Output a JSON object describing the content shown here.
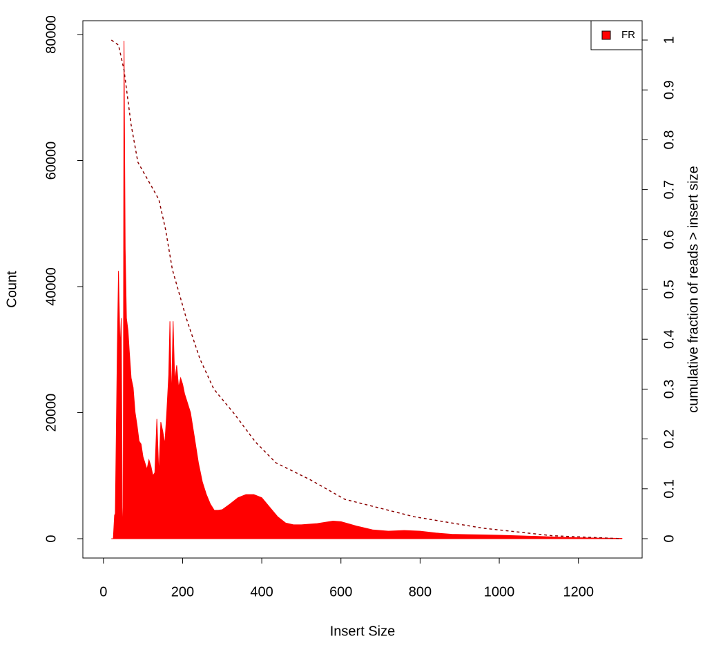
{
  "chart_data": {
    "type": "area",
    "x_label": "Insert Size",
    "y_label": "Count",
    "y2_label": "cumulative fraction of reads > insert size",
    "xlim": [
      -52,
      1361
    ],
    "ylim": [
      -3068,
      82192
    ],
    "y2lim": [
      -0.0388,
      1.0388
    ],
    "xticks": [
      0,
      200,
      400,
      600,
      800,
      1000,
      1200
    ],
    "yticks": [
      0,
      20000,
      40000,
      60000,
      80000
    ],
    "y2ticks": [
      0,
      0.1,
      0.2,
      0.3,
      0.4,
      0.5,
      0.6,
      0.7,
      0.8,
      0.9,
      1
    ],
    "legend": "topright",
    "series": [
      {
        "name": "FR",
        "color": "#ff0000",
        "x": [
          20,
          25,
          28,
          30,
          35,
          38,
          42,
          45,
          48,
          50,
          52,
          55,
          58,
          62,
          65,
          70,
          75,
          80,
          85,
          90,
          95,
          100,
          105,
          110,
          115,
          120,
          125,
          130,
          135,
          140,
          145,
          150,
          155,
          160,
          165,
          168,
          172,
          176,
          180,
          185,
          190,
          195,
          200,
          205,
          210,
          220,
          230,
          240,
          250,
          260,
          270,
          280,
          290,
          300,
          320,
          340,
          360,
          380,
          400,
          420,
          440,
          460,
          480,
          500,
          540,
          580,
          600,
          640,
          680,
          720,
          760,
          800,
          840,
          880,
          920,
          960,
          1000,
          1050,
          1100,
          1150,
          1200,
          1250,
          1310
        ],
        "values": [
          0,
          0,
          3700,
          4000,
          30000,
          42500,
          30000,
          35000,
          0,
          5000,
          79000,
          46000,
          35000,
          33000,
          30000,
          25500,
          24000,
          20000,
          18000,
          15500,
          15000,
          13000,
          12000,
          11000,
          12500,
          11500,
          10000,
          10500,
          19000,
          10000,
          18500,
          17000,
          15000,
          20000,
          26000,
          34500,
          22000,
          34500,
          25000,
          27500,
          24000,
          25500,
          24500,
          23000,
          22000,
          20000,
          16000,
          12000,
          9000,
          7000,
          5500,
          4500,
          4500,
          4600,
          5500,
          6500,
          7000,
          7000,
          6500,
          5000,
          3500,
          2500,
          2200,
          2200,
          2400,
          2800,
          2700,
          2000,
          1400,
          1200,
          1300,
          1200,
          900,
          700,
          650,
          600,
          550,
          450,
          350,
          250,
          150,
          100,
          50
        ]
      },
      {
        "color": "#8b0000",
        "axis": "y2",
        "dashed": true,
        "x": [
          20,
          38,
          52,
          70,
          87,
          122,
          140,
          157,
          174,
          209,
          244,
          279,
          331,
          384,
          436,
          523,
          610,
          785,
          959,
          1134,
          1308
        ],
        "values": [
          1,
          0.99,
          0.94,
          0.83,
          0.755,
          0.706,
          0.68,
          0.62,
          0.54,
          0.443,
          0.36,
          0.3,
          0.25,
          0.194,
          0.152,
          0.118,
          0.079,
          0.044,
          0.021,
          0.006,
          0
        ]
      }
    ]
  }
}
